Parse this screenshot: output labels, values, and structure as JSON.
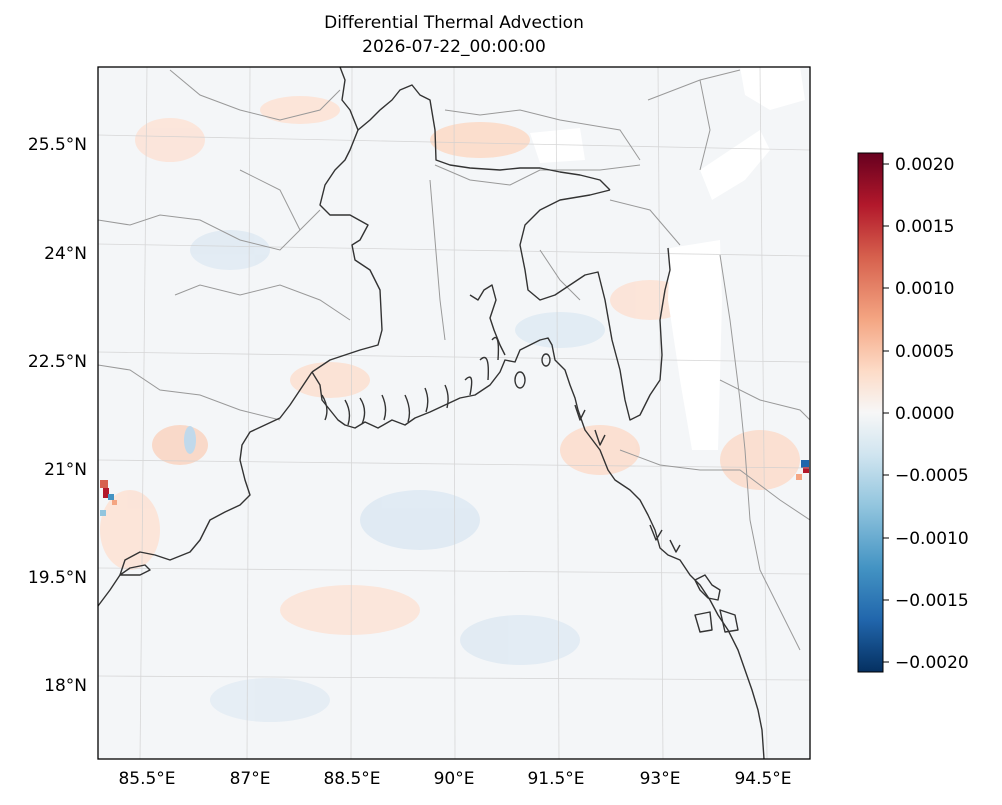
{
  "title": "Differential Thermal Advection",
  "subtitle": "2026-07-22_00:00:00",
  "map": {
    "type": "heatmap",
    "extent_lon": [
      84.9,
      95.2
    ],
    "extent_lat": [
      17.0,
      26.0
    ],
    "lat_ticks": [
      "25.5°N",
      "24°N",
      "22.5°N",
      "21°N",
      "19.5°N",
      "18°N"
    ],
    "lon_ticks": [
      "85.5°E",
      "87°E",
      "88.5°E",
      "90°E",
      "91.5°E",
      "93°E",
      "94.5°E"
    ],
    "colormap": "RdBu_r",
    "colormap_stops": [
      "#053061",
      "#2166ac",
      "#4393c3",
      "#92c5de",
      "#d1e5f0",
      "#f7f7f7",
      "#fddbc7",
      "#f4a582",
      "#d6604d",
      "#b2182b",
      "#67001f"
    ],
    "coastline_color": "#333333",
    "border_color": "#999999",
    "missing_value_color": "#ffffff"
  },
  "colorbar": {
    "range": [
      -0.0021,
      0.0021
    ],
    "ticks": [
      "0.0020",
      "0.0015",
      "0.0010",
      "0.0005",
      "0.0000",
      "−0.0005",
      "−0.0010",
      "−0.0015",
      "−0.0020"
    ]
  }
}
